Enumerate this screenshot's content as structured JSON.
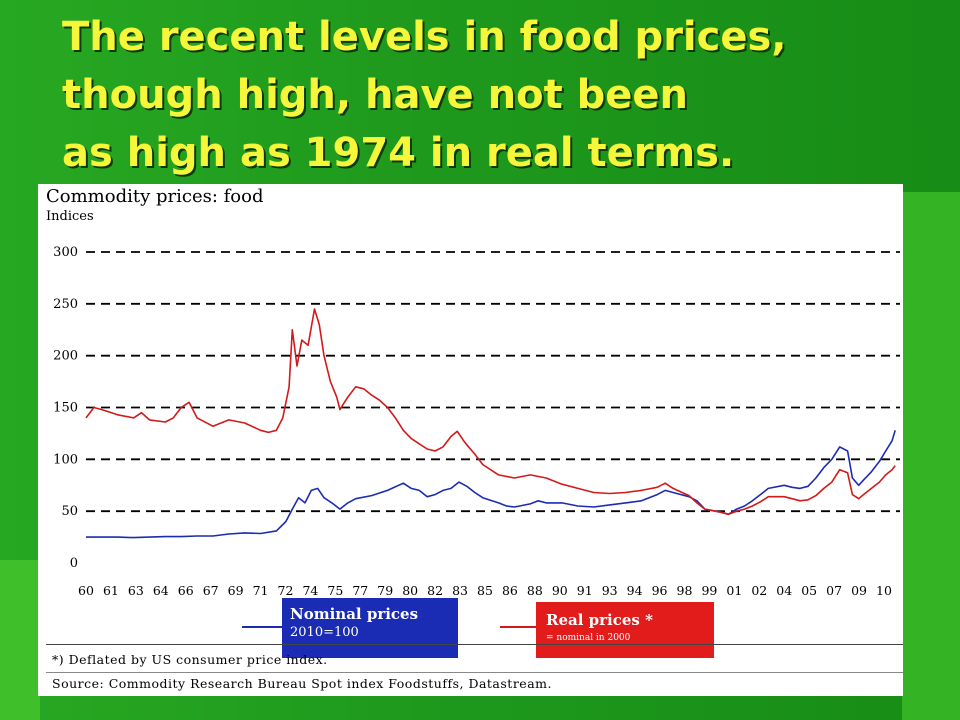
{
  "slide": {
    "title_lines": [
      "The recent levels in food prices,",
      "though high, have not been",
      "as high as 1974 in real terms."
    ],
    "colors": {
      "background": "#1f9a1d",
      "title": "#f6f63a"
    }
  },
  "chart_data": {
    "type": "line",
    "title": "Commodity prices: food",
    "ylabel": "Indices",
    "ylim": [
      0,
      300
    ],
    "yticks": [
      0,
      50,
      100,
      150,
      200,
      250,
      300
    ],
    "xlim": [
      1960,
      2011.3
    ],
    "grid": "dashed horizontal",
    "x_tick_labels": [
      "60",
      "61",
      "63",
      "64",
      "66",
      "67",
      "69",
      "71",
      "72",
      "74",
      "75",
      "77",
      "79",
      "80",
      "82",
      "83",
      "85",
      "86",
      "88",
      "90",
      "91",
      "93",
      "94",
      "96",
      "98",
      "99",
      "01",
      "02",
      "04",
      "05",
      "07",
      "09",
      "10"
    ],
    "series": [
      {
        "name": "Nominal prices",
        "note": "2010=100",
        "color": "#1b2cb4",
        "points": [
          [
            1960,
            25
          ],
          [
            1961,
            25
          ],
          [
            1962,
            25
          ],
          [
            1963,
            24.5
          ],
          [
            1964,
            25
          ],
          [
            1965,
            25.5
          ],
          [
            1966,
            25.5
          ],
          [
            1967,
            26
          ],
          [
            1968,
            26
          ],
          [
            1969,
            28
          ],
          [
            1970,
            29
          ],
          [
            1971,
            28.5
          ],
          [
            1972,
            31
          ],
          [
            1972.6,
            40
          ],
          [
            1973,
            52
          ],
          [
            1973.4,
            63
          ],
          [
            1973.8,
            58
          ],
          [
            1974.2,
            70
          ],
          [
            1974.6,
            72
          ],
          [
            1975,
            63
          ],
          [
            1975.5,
            58
          ],
          [
            1976,
            52
          ],
          [
            1976.5,
            58
          ],
          [
            1977,
            62
          ],
          [
            1978,
            65
          ],
          [
            1979,
            70
          ],
          [
            1980,
            77
          ],
          [
            1980.5,
            72
          ],
          [
            1981,
            70
          ],
          [
            1981.5,
            64
          ],
          [
            1982,
            66
          ],
          [
            1982.5,
            70
          ],
          [
            1983,
            72
          ],
          [
            1983.5,
            78
          ],
          [
            1984,
            74
          ],
          [
            1984.5,
            68
          ],
          [
            1985,
            63
          ],
          [
            1986,
            58
          ],
          [
            1986.5,
            55
          ],
          [
            1987,
            54
          ],
          [
            1988,
            57
          ],
          [
            1988.5,
            60
          ],
          [
            1989,
            58
          ],
          [
            1990,
            58
          ],
          [
            1991,
            55
          ],
          [
            1992,
            54
          ],
          [
            1993,
            56
          ],
          [
            1994,
            58
          ],
          [
            1995,
            60
          ],
          [
            1996,
            66
          ],
          [
            1996.5,
            70
          ],
          [
            1997,
            68
          ],
          [
            1998,
            64
          ],
          [
            1998.5,
            60
          ],
          [
            1999,
            52
          ],
          [
            2000,
            49
          ],
          [
            2000.5,
            47
          ],
          [
            2001,
            52
          ],
          [
            2001.5,
            55
          ],
          [
            2002,
            60
          ],
          [
            2002.5,
            66
          ],
          [
            2003,
            72
          ],
          [
            2004,
            75
          ],
          [
            2004.5,
            73
          ],
          [
            2005,
            72
          ],
          [
            2005.5,
            74
          ],
          [
            2006,
            82
          ],
          [
            2006.5,
            92
          ],
          [
            2007,
            100
          ],
          [
            2007.5,
            112
          ],
          [
            2008,
            108
          ],
          [
            2008.3,
            82
          ],
          [
            2008.7,
            75
          ],
          [
            2009,
            80
          ],
          [
            2009.5,
            88
          ],
          [
            2010,
            98
          ],
          [
            2010.4,
            108
          ],
          [
            2010.8,
            118
          ],
          [
            2011,
            128
          ]
        ]
      },
      {
        "name": "Real prices *",
        "note": "= nominal in 2000",
        "color": "#d21a1a",
        "points": [
          [
            1960,
            140
          ],
          [
            1960.5,
            150
          ],
          [
            1961,
            148
          ],
          [
            1962,
            143
          ],
          [
            1963,
            140
          ],
          [
            1963.5,
            145
          ],
          [
            1964,
            138
          ],
          [
            1965,
            136
          ],
          [
            1965.5,
            140
          ],
          [
            1966,
            150
          ],
          [
            1966.5,
            155
          ],
          [
            1967,
            140
          ],
          [
            1968,
            132
          ],
          [
            1969,
            138
          ],
          [
            1970,
            135
          ],
          [
            1971,
            128
          ],
          [
            1971.5,
            126
          ],
          [
            1972,
            128
          ],
          [
            1972.4,
            140
          ],
          [
            1972.8,
            170
          ],
          [
            1973,
            225
          ],
          [
            1973.3,
            190
          ],
          [
            1973.6,
            215
          ],
          [
            1974,
            210
          ],
          [
            1974.4,
            245
          ],
          [
            1974.7,
            230
          ],
          [
            1975,
            200
          ],
          [
            1975.4,
            175
          ],
          [
            1975.8,
            160
          ],
          [
            1976,
            148
          ],
          [
            1976.5,
            160
          ],
          [
            1977,
            170
          ],
          [
            1977.5,
            168
          ],
          [
            1978,
            162
          ],
          [
            1978.5,
            157
          ],
          [
            1979,
            150
          ],
          [
            1979.5,
            140
          ],
          [
            1980,
            128
          ],
          [
            1980.5,
            120
          ],
          [
            1981,
            115
          ],
          [
            1981.5,
            110
          ],
          [
            1982,
            108
          ],
          [
            1982.5,
            112
          ],
          [
            1983,
            122
          ],
          [
            1983.4,
            127
          ],
          [
            1983.8,
            118
          ],
          [
            1984,
            114
          ],
          [
            1984.5,
            105
          ],
          [
            1985,
            95
          ],
          [
            1986,
            85
          ],
          [
            1987,
            82
          ],
          [
            1988,
            85
          ],
          [
            1989,
            82
          ],
          [
            1990,
            76
          ],
          [
            1991,
            72
          ],
          [
            1992,
            68
          ],
          [
            1993,
            67
          ],
          [
            1994,
            68
          ],
          [
            1995,
            70
          ],
          [
            1996,
            73
          ],
          [
            1996.5,
            77
          ],
          [
            1997,
            72
          ],
          [
            1998,
            65
          ],
          [
            1998.5,
            58
          ],
          [
            1999,
            52
          ],
          [
            2000,
            49
          ],
          [
            2000.5,
            47
          ],
          [
            2001,
            50
          ],
          [
            2001.5,
            52
          ],
          [
            2002,
            55
          ],
          [
            2002.5,
            59
          ],
          [
            2003,
            64
          ],
          [
            2004,
            64
          ],
          [
            2004.5,
            62
          ],
          [
            2005,
            60
          ],
          [
            2005.5,
            61
          ],
          [
            2006,
            65
          ],
          [
            2006.5,
            72
          ],
          [
            2007,
            78
          ],
          [
            2007.5,
            90
          ],
          [
            2008,
            87
          ],
          [
            2008.3,
            66
          ],
          [
            2008.7,
            62
          ],
          [
            2009,
            66
          ],
          [
            2009.5,
            72
          ],
          [
            2010,
            78
          ],
          [
            2010.4,
            85
          ],
          [
            2010.8,
            90
          ],
          [
            2011,
            94
          ]
        ]
      }
    ],
    "footnote": "*) Deflated by US consumer price index.",
    "source": "Source: Commodity Research Bureau Spot index Foodstuffs, Datastream."
  }
}
